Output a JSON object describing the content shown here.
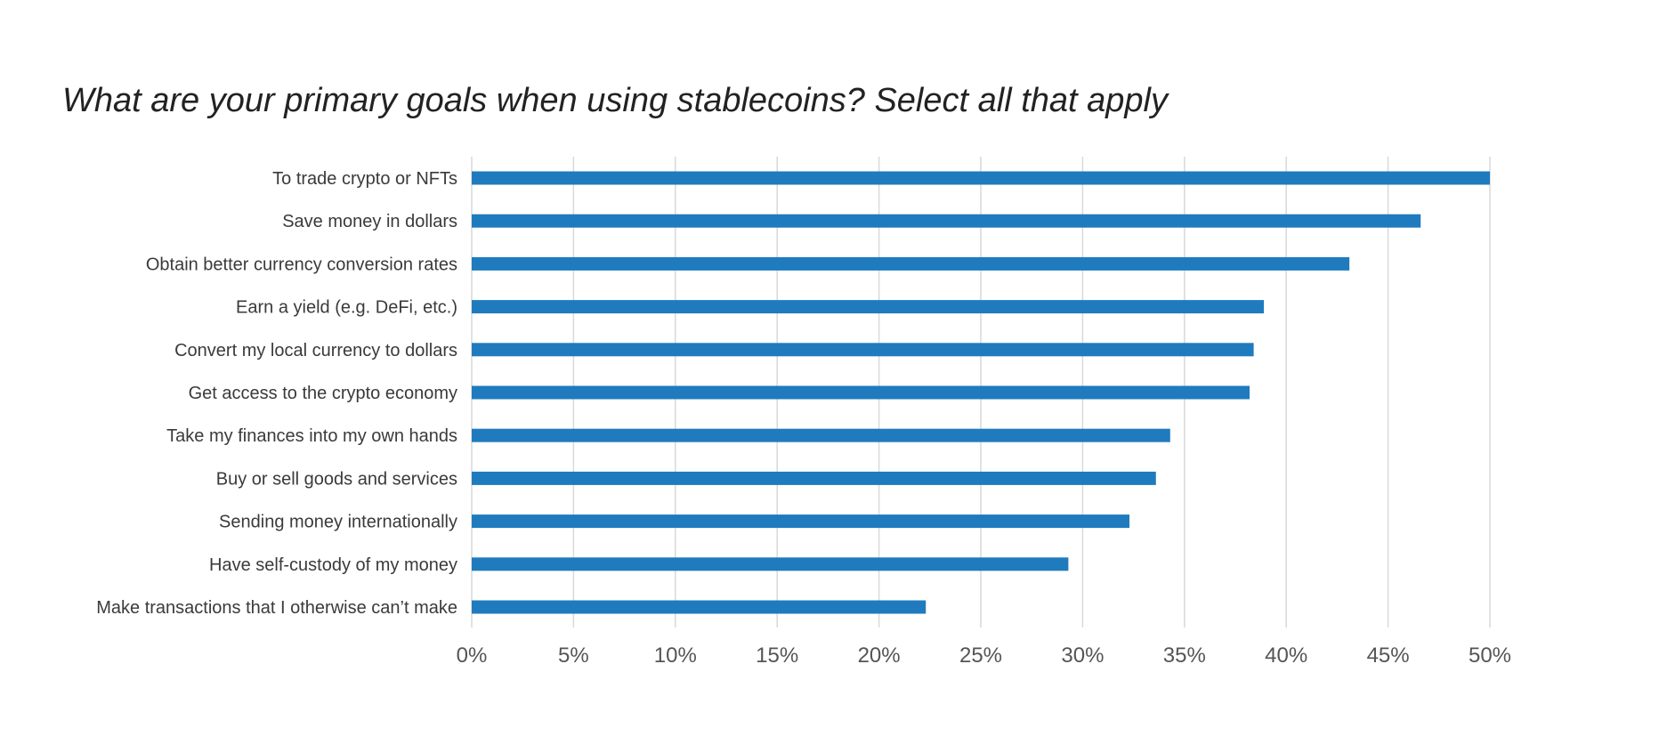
{
  "chart_data": {
    "type": "bar",
    "orientation": "horizontal",
    "title": "What are your primary goals when using stablecoins? Select all that apply",
    "categories": [
      "To trade crypto or NFTs",
      "Save money in dollars",
      "Obtain better currency conversion rates",
      "Earn a yield (e.g. DeFi, etc.)",
      "Convert my local currency to dollars",
      "Get access to the crypto economy",
      "Take my finances into my own hands",
      "Buy or sell goods and services",
      "Sending money internationally",
      "Have self-custody of my money",
      "Make transactions that I otherwise can’t make"
    ],
    "values": [
      50,
      46.6,
      43.1,
      38.9,
      38.4,
      38.2,
      34.3,
      33.6,
      32.3,
      29.3,
      22.3
    ],
    "xlim": [
      0,
      50
    ],
    "xticks": [
      0,
      5,
      10,
      15,
      20,
      25,
      30,
      35,
      40,
      45,
      50
    ],
    "tick_labels": [
      "0%",
      "5%",
      "10%",
      "15%",
      "20%",
      "25%",
      "30%",
      "35%",
      "40%",
      "45%",
      "50%"
    ],
    "grid": "vertical",
    "legend": "none",
    "bar_color": "#1f7bbd",
    "grid_color": "#d9d9d9"
  }
}
